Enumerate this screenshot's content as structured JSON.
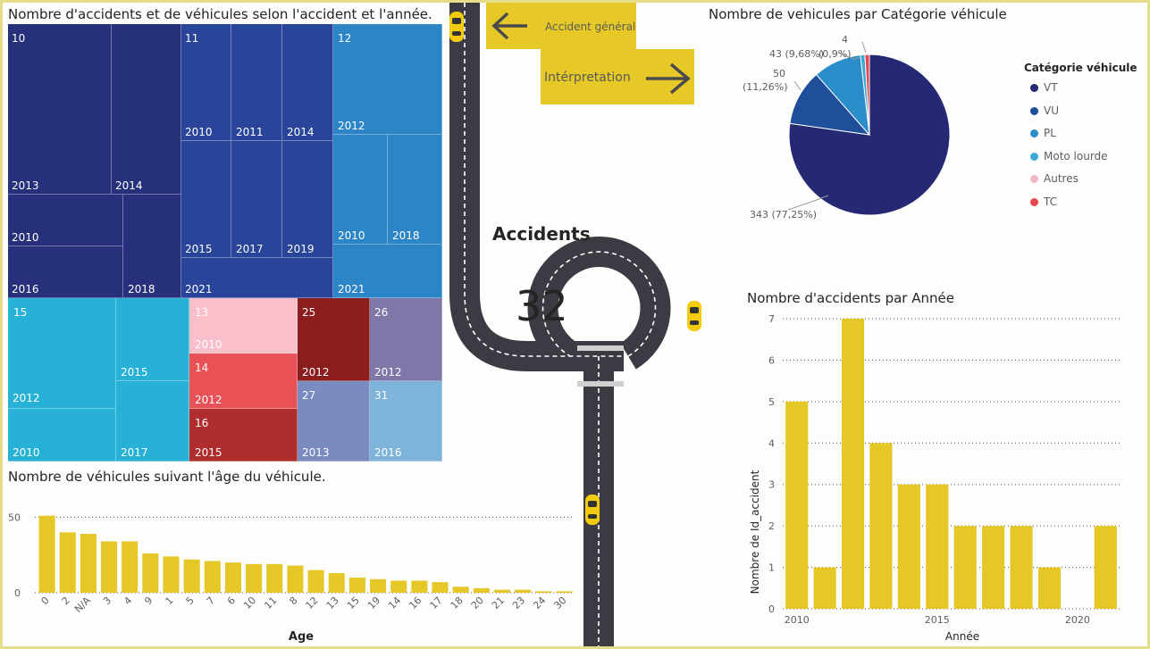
{
  "treemap": {
    "title": "Nombre d'accidents et de véhicules selon l'accident et l'année.",
    "groups": [
      {
        "id": "10",
        "color": "#27307a",
        "cells": [
          "2013",
          "2014",
          "2010",
          "2018",
          "2016"
        ]
      },
      {
        "id": "11",
        "color": "#28459a",
        "cells": [
          "2010",
          "2011",
          "2014",
          "2015",
          "2017",
          "2019",
          "2021"
        ]
      },
      {
        "id": "12",
        "color": "#2b85c7",
        "cells": [
          "2012",
          "2010",
          "2018",
          "2021"
        ]
      },
      {
        "id": "15",
        "color": "#27b1d6",
        "cells": [
          "2012",
          "2015",
          "2010",
          "2017"
        ]
      },
      {
        "id": "13",
        "color": "#f9bfcb",
        "cells": [
          "2010"
        ]
      },
      {
        "id": "14",
        "color": "#e85257",
        "cells": [
          "2012"
        ]
      },
      {
        "id": "16",
        "color": "#b02d2d",
        "cells": [
          "2015"
        ]
      },
      {
        "id": "25",
        "color": "#8b1d1f",
        "cells": [
          "2012"
        ]
      },
      {
        "id": "26",
        "color": "#7d78a8",
        "cells": [
          "2012"
        ]
      },
      {
        "id": "27",
        "color": "#7a8cbf",
        "cells": [
          "2013"
        ]
      },
      {
        "id": "31",
        "color": "#7fb4da",
        "cells": [
          "2016"
        ]
      }
    ]
  },
  "nav": {
    "back_label": "Accident général",
    "next_label": "Intérpretation"
  },
  "kpi": {
    "label": "Accidents",
    "value": "32"
  },
  "pie": {
    "title": "Nombre de vehicules par Catégorie véhicule",
    "legend_title": "Catégorie véhicule",
    "labels": {
      "vt": "343 (77,25%)",
      "vu_value": "50",
      "vu_pct": "(11,26%)",
      "pl": "43 (9,68%)",
      "tiny": "(0,9%)",
      "tc": "4"
    },
    "chart_data": {
      "type": "pie",
      "title": "Nombre de vehicules par Catégorie véhicule",
      "legend_title": "Catégorie véhicule",
      "categories": [
        "VT",
        "VU",
        "PL",
        "Moto lourde",
        "Autres",
        "TC"
      ],
      "values": [
        343,
        50,
        43,
        4,
        0,
        4
      ],
      "colors": [
        "#252873",
        "#1f4e9a",
        "#2a8cc8",
        "#3aa9d8",
        "#f2b8c8",
        "#e8484e"
      ],
      "legend": "right"
    }
  },
  "age_chart": {
    "title": "Nombre de véhicules suivant l'âge du véhicule.",
    "xlabel": "Age",
    "chart_data": {
      "type": "bar",
      "categories": [
        "0",
        "2",
        "N/A",
        "3",
        "4",
        "9",
        "1",
        "5",
        "7",
        "6",
        "10",
        "11",
        "8",
        "12",
        "13",
        "15",
        "19",
        "14",
        "16",
        "17",
        "18",
        "20",
        "21",
        "23",
        "24",
        "30"
      ],
      "values": [
        51,
        40,
        39,
        34,
        34,
        26,
        24,
        22,
        21,
        20,
        19,
        19,
        18,
        15,
        13,
        10,
        9,
        8,
        8,
        7,
        4,
        3,
        2,
        2,
        1,
        1
      ],
      "xlabel": "Age",
      "ylabel": "",
      "ylim": [
        0,
        52
      ],
      "yticks": [
        "0",
        "50"
      ],
      "color": "#e5c827"
    }
  },
  "year_chart": {
    "title": "Nombre d'accidents par Année",
    "xlabel": "Année",
    "ylabel": "Nombre de Id_accident",
    "chart_data": {
      "type": "bar",
      "x": [
        2010,
        2011,
        2012,
        2013,
        2014,
        2015,
        2016,
        2017,
        2018,
        2019,
        2021
      ],
      "values": [
        5,
        1,
        7,
        4,
        3,
        3,
        2,
        2,
        2,
        1,
        2
      ],
      "xlabel": "Année",
      "ylabel": "Nombre de Id_accident",
      "ylim": [
        0,
        7
      ],
      "yticks": [
        "0",
        "1",
        "2",
        "3",
        "4",
        "5",
        "6",
        "7"
      ],
      "xticks": [
        "2010",
        "2015",
        "2020"
      ],
      "color": "#e5c827"
    }
  },
  "icons": {
    "back": "arrow-left-icon",
    "next": "arrow-right-icon",
    "car": "car-icon"
  }
}
